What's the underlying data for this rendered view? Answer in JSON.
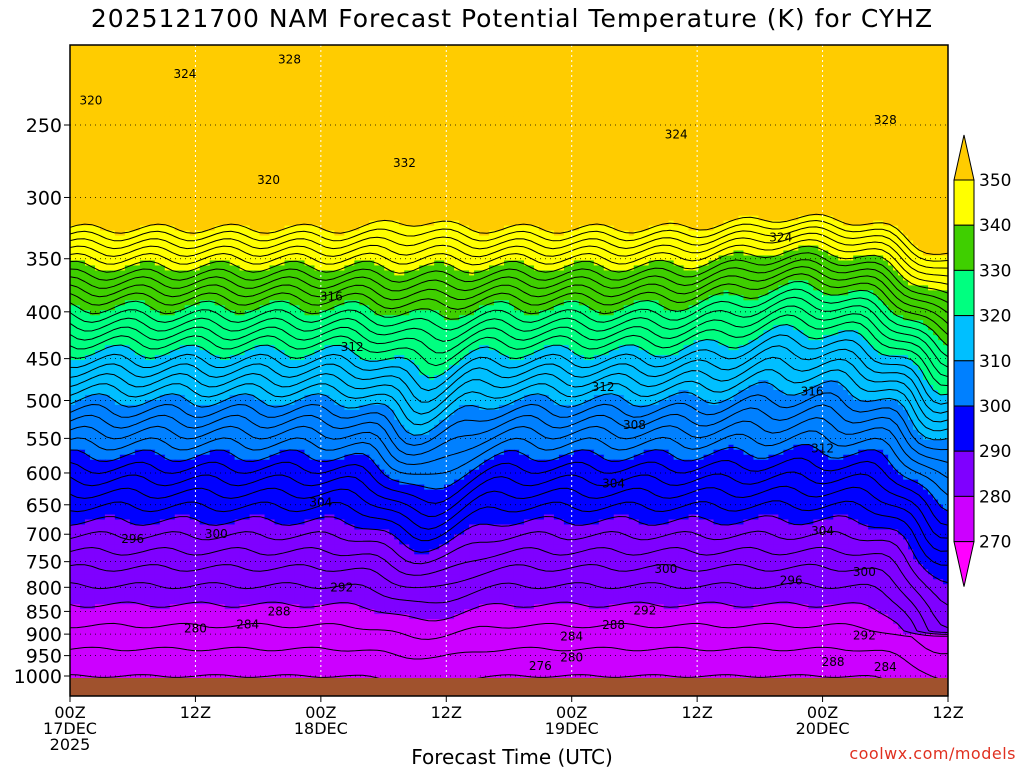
{
  "chart_data": {
    "type": "time-height contour",
    "title": "2025121700 NAM Forecast Potential Temperature (K) for CYHZ",
    "xlabel": "Forecast Time (UTC)",
    "x_ticks": [
      {
        "hour": 0,
        "lines": [
          "00Z",
          "17DEC",
          "2025"
        ]
      },
      {
        "hour": 12,
        "lines": [
          "12Z"
        ]
      },
      {
        "hour": 24,
        "lines": [
          "00Z",
          "18DEC"
        ]
      },
      {
        "hour": 36,
        "lines": [
          "12Z"
        ]
      },
      {
        "hour": 48,
        "lines": [
          "00Z",
          "19DEC"
        ]
      },
      {
        "hour": 60,
        "lines": [
          "12Z"
        ]
      },
      {
        "hour": 72,
        "lines": [
          "00Z",
          "20DEC"
        ]
      },
      {
        "hour": 84,
        "lines": [
          "12Z"
        ]
      }
    ],
    "xlim": [
      0,
      84
    ],
    "y_ticks": [
      1000,
      950,
      900,
      850,
      800,
      750,
      700,
      650,
      600,
      550,
      500,
      450,
      400,
      350,
      300,
      250
    ],
    "ylim_hpa": [
      1020,
      200
    ],
    "colorbar": {
      "levels": [
        270,
        280,
        290,
        300,
        310,
        320,
        330,
        340,
        350
      ],
      "colors": [
        "#ff00ff",
        "#cc00ff",
        "#7f00ff",
        "#0000ff",
        "#0080ff",
        "#00bfff",
        "#00ff80",
        "#3fcf00",
        "#ffff00",
        "#ffcc00"
      ]
    },
    "contour_labels": [
      {
        "text": "320",
        "hour": 2,
        "p": 235
      },
      {
        "text": "324",
        "hour": 11,
        "p": 220
      },
      {
        "text": "328",
        "hour": 21,
        "p": 212
      },
      {
        "text": "320",
        "hour": 19,
        "p": 287
      },
      {
        "text": "332",
        "hour": 32,
        "p": 275
      },
      {
        "text": "324",
        "hour": 58,
        "p": 256
      },
      {
        "text": "328",
        "hour": 78,
        "p": 247
      },
      {
        "text": "324",
        "hour": 68,
        "p": 332
      },
      {
        "text": "316",
        "hour": 25,
        "p": 385
      },
      {
        "text": "312",
        "hour": 27,
        "p": 437
      },
      {
        "text": "312",
        "hour": 51,
        "p": 483
      },
      {
        "text": "308",
        "hour": 54,
        "p": 532
      },
      {
        "text": "316",
        "hour": 71,
        "p": 489
      },
      {
        "text": "312",
        "hour": 72,
        "p": 564
      },
      {
        "text": "304",
        "hour": 24,
        "p": 646
      },
      {
        "text": "304",
        "hour": 52,
        "p": 616
      },
      {
        "text": "304",
        "hour": 72,
        "p": 694
      },
      {
        "text": "300",
        "hour": 14,
        "p": 700
      },
      {
        "text": "296",
        "hour": 6,
        "p": 708
      },
      {
        "text": "300",
        "hour": 57,
        "p": 764
      },
      {
        "text": "296",
        "hour": 69,
        "p": 786
      },
      {
        "text": "300",
        "hour": 76,
        "p": 770
      },
      {
        "text": "292",
        "hour": 26,
        "p": 800
      },
      {
        "text": "292",
        "hour": 55,
        "p": 848
      },
      {
        "text": "292",
        "hour": 76,
        "p": 903
      },
      {
        "text": "288",
        "hour": 20,
        "p": 850
      },
      {
        "text": "288",
        "hour": 52,
        "p": 880
      },
      {
        "text": "288",
        "hour": 73,
        "p": 965
      },
      {
        "text": "284",
        "hour": 17,
        "p": 878
      },
      {
        "text": "284",
        "hour": 48,
        "p": 905
      },
      {
        "text": "284",
        "hour": 78,
        "p": 978
      },
      {
        "text": "280",
        "hour": 12,
        "p": 887
      },
      {
        "text": "280",
        "hour": 48,
        "p": 955
      },
      {
        "text": "276",
        "hour": 45,
        "p": 975
      }
    ],
    "isentrope_spacing_K": 2,
    "ground": {
      "color": "#a0522d",
      "surface_p": 1000
    }
  },
  "credit": "coolwx.com/models"
}
